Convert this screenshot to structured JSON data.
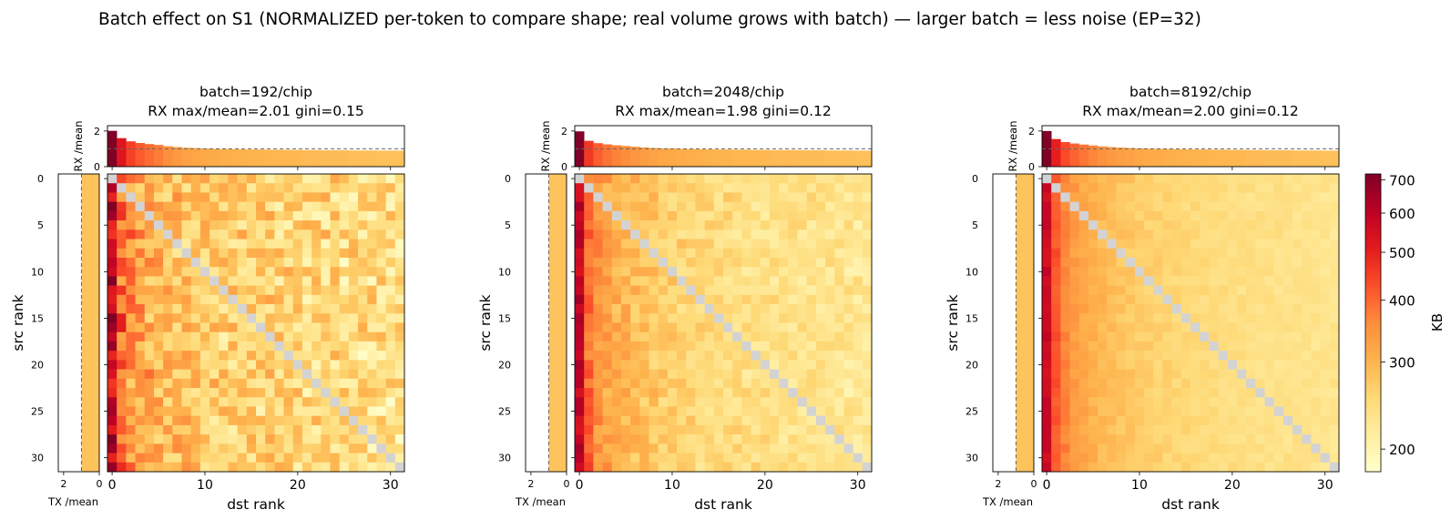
{
  "figure": {
    "title": "Batch effect on S1 (NORMALIZED per-token to compare shape; real volume grows with batch) — larger batch = less noise (EP=32)"
  },
  "colorbar": {
    "label": "KB",
    "ticks": [
      "200",
      "300",
      "400",
      "500",
      "600",
      "700"
    ],
    "tick_values": [
      200,
      300,
      400,
      500,
      600,
      700
    ],
    "vmin": 180,
    "vmax": 720,
    "colormap": [
      "#ffffcc",
      "#ffeda0",
      "#fed976",
      "#feb24c",
      "#fd8d3c",
      "#fc4e2a",
      "#e31a1c",
      "#bd0026",
      "#800026"
    ]
  },
  "diagonal_color": "#d3d3d3",
  "chart_data": [
    {
      "type": "heatmap",
      "title": "batch=192/chip",
      "subtitle": "RX max/mean=2.01  gini=0.15",
      "xlabel": "dst rank",
      "ylabel": "src rank",
      "x_ticks": [
        "0",
        "10",
        "20",
        "30"
      ],
      "y_ticks": [
        "0",
        "5",
        "10",
        "15",
        "20",
        "25",
        "30"
      ],
      "size": 32,
      "matrix_unit": "KB",
      "matrix_profile": {
        "col_scale": [
          600,
          405,
          360,
          335,
          320,
          310,
          298,
          290,
          285,
          280,
          276,
          272,
          270,
          268,
          266,
          264,
          262,
          260,
          258,
          256,
          255,
          254,
          253,
          252,
          251,
          250,
          249,
          248,
          247,
          246,
          245,
          244
        ],
        "noise": 0.28
      },
      "rx_panel": {
        "ylabel": "RX /mean",
        "yticks": [
          "0",
          "2"
        ],
        "ylim": [
          0,
          2.3
        ],
        "reference_line": 1.0,
        "values": [
          2.01,
          1.6,
          1.42,
          1.33,
          1.27,
          1.22,
          1.15,
          1.1,
          1.06,
          1.04,
          1.02,
          1.0,
          0.99,
          0.98,
          0.97,
          0.96,
          0.96,
          0.95,
          0.95,
          0.94,
          0.94,
          0.93,
          0.93,
          0.92,
          0.92,
          0.92,
          0.91,
          0.91,
          0.91,
          0.9,
          0.9,
          0.9
        ]
      },
      "tx_panel": {
        "xlabel": "TX /mean",
        "xticks": [
          "2",
          "0"
        ],
        "xlim": [
          2.3,
          0
        ],
        "reference_line": 1.0,
        "value": 1.0
      }
    },
    {
      "type": "heatmap",
      "title": "batch=2048/chip",
      "subtitle": "RX max/mean=1.98  gini=0.12",
      "xlabel": "dst rank",
      "ylabel": "src rank",
      "x_ticks": [
        "0",
        "10",
        "20",
        "30"
      ],
      "y_ticks": [
        "0",
        "5",
        "10",
        "15",
        "20",
        "25",
        "30"
      ],
      "size": 32,
      "matrix_unit": "KB",
      "matrix_profile": {
        "col_scale": [
          590,
          400,
          350,
          325,
          310,
          298,
          288,
          280,
          274,
          268,
          264,
          260,
          256,
          253,
          250,
          248,
          246,
          244,
          242,
          240,
          238,
          237,
          236,
          235,
          234,
          233,
          232,
          231,
          230,
          229,
          228,
          227
        ],
        "noise": 0.14
      },
      "rx_panel": {
        "ylabel": "RX /mean",
        "yticks": [
          "0",
          "2"
        ],
        "ylim": [
          0,
          2.3
        ],
        "reference_line": 1.0,
        "values": [
          1.98,
          1.45,
          1.32,
          1.25,
          1.2,
          1.16,
          1.12,
          1.08,
          1.05,
          1.03,
          1.02,
          1.0,
          0.99,
          0.98,
          0.97,
          0.96,
          0.96,
          0.95,
          0.95,
          0.94,
          0.94,
          0.93,
          0.93,
          0.93,
          0.92,
          0.92,
          0.92,
          0.91,
          0.91,
          0.91,
          0.9,
          0.9
        ]
      },
      "tx_panel": {
        "xlabel": "TX /mean",
        "xticks": [
          "2",
          "0"
        ],
        "xlim": [
          2.3,
          0
        ],
        "reference_line": 1.0,
        "value": 1.0
      }
    },
    {
      "type": "heatmap",
      "title": "batch=8192/chip",
      "subtitle": "RX max/mean=2.00  gini=0.12",
      "xlabel": "dst rank",
      "ylabel": "src rank",
      "x_ticks": [
        "0",
        "10",
        "20",
        "30"
      ],
      "y_ticks": [
        "0",
        "5",
        "10",
        "15",
        "20",
        "25",
        "30"
      ],
      "size": 32,
      "matrix_unit": "KB",
      "matrix_profile": {
        "col_scale": [
          560,
          420,
          365,
          335,
          318,
          305,
          295,
          287,
          280,
          274,
          269,
          265,
          261,
          258,
          255,
          252,
          250,
          248,
          246,
          244,
          242,
          240,
          239,
          238,
          237,
          236,
          235,
          234,
          233,
          232,
          231,
          230
        ],
        "noise": 0.06
      },
      "rx_panel": {
        "ylabel": "RX /mean",
        "yticks": [
          "0",
          "2"
        ],
        "ylim": [
          0,
          2.3
        ],
        "reference_line": 1.0,
        "values": [
          2.0,
          1.55,
          1.38,
          1.3,
          1.24,
          1.19,
          1.14,
          1.1,
          1.07,
          1.05,
          1.03,
          1.01,
          1.0,
          0.99,
          0.98,
          0.97,
          0.96,
          0.96,
          0.95,
          0.95,
          0.94,
          0.94,
          0.93,
          0.93,
          0.92,
          0.92,
          0.92,
          0.91,
          0.91,
          0.91,
          0.9,
          0.9
        ]
      },
      "tx_panel": {
        "xlabel": "TX /mean",
        "xticks": [
          "2",
          "0"
        ],
        "xlim": [
          2.3,
          0
        ],
        "reference_line": 1.0,
        "value": 1.0
      }
    }
  ]
}
